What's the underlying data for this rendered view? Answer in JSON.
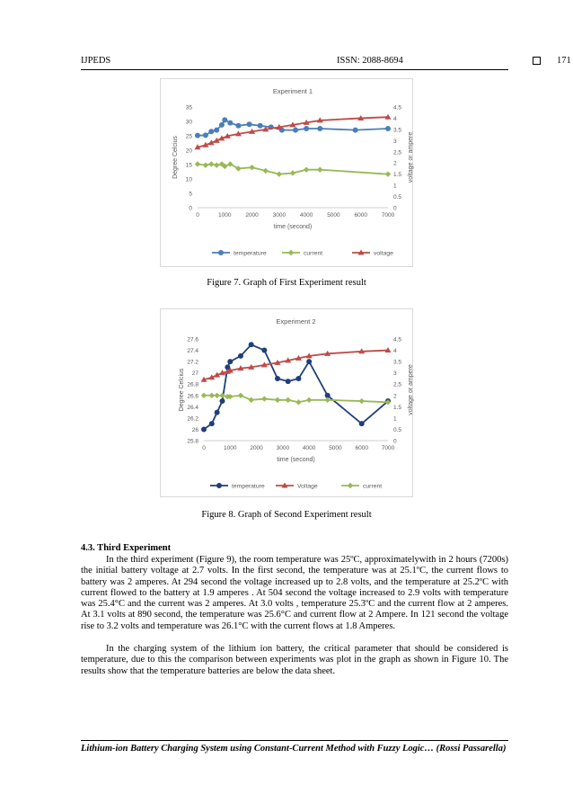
{
  "header": {
    "journal": "IJPEDS",
    "issn": "ISSN: 2088-8694",
    "page_number": "171"
  },
  "figure7": {
    "caption": "Figure 7. Graph of First Experiment result"
  },
  "figure8": {
    "caption": "Figure 8. Graph of Second Experiment result"
  },
  "chart_data": [
    {
      "type": "line",
      "title": "Experiment 1",
      "xlabel": "time (second)",
      "ylabel": "Degree Celcius",
      "y2label": "voltage or ampere",
      "xlim": [
        0,
        7000
      ],
      "xticks": [
        "0",
        "1000",
        "2000",
        "3000",
        "4000",
        "5000",
        "6000",
        "7000"
      ],
      "ylim": [
        0,
        35
      ],
      "yticks": [
        "0",
        "5",
        "10",
        "15",
        "20",
        "25",
        "30",
        "35"
      ],
      "y2lim": [
        0,
        4.5
      ],
      "y2ticks": [
        "0",
        "0.5",
        "1",
        "1.5",
        "2",
        "2.5",
        "3",
        "3.5",
        "4",
        "4.5"
      ],
      "legend_position": "bottom",
      "colors": {
        "temperature": "#4a7ebb",
        "current": "#98b954",
        "voltage": "#be4b48"
      },
      "series": [
        {
          "name": "temperature",
          "axis": "left",
          "x": [
            0,
            294,
            504,
            700,
            890,
            1000,
            1200,
            1500,
            1900,
            2300,
            2700,
            3100,
            3600,
            4000,
            4500,
            5800,
            7000
          ],
          "y": [
            25.1,
            25.2,
            26.5,
            27,
            28.8,
            30.5,
            29.5,
            28.5,
            29,
            28.5,
            28,
            27,
            27,
            27.5,
            27.5,
            27,
            27.5
          ]
        },
        {
          "name": "current",
          "axis": "right",
          "x": [
            0,
            294,
            504,
            700,
            890,
            1000,
            1200,
            1500,
            2000,
            2500,
            3000,
            3500,
            4000,
            4500,
            7000
          ],
          "y": [
            1.95,
            1.9,
            1.95,
            1.9,
            1.95,
            1.85,
            1.95,
            1.75,
            1.8,
            1.65,
            1.5,
            1.55,
            1.7,
            1.7,
            1.5
          ]
        },
        {
          "name": "voltage",
          "axis": "right",
          "x": [
            0,
            294,
            504,
            700,
            890,
            1100,
            1500,
            2000,
            2500,
            3000,
            3500,
            4000,
            4500,
            6000,
            7000
          ],
          "y": [
            2.7,
            2.8,
            2.9,
            3.0,
            3.1,
            3.2,
            3.3,
            3.4,
            3.5,
            3.6,
            3.7,
            3.8,
            3.9,
            4.0,
            4.05
          ]
        }
      ]
    },
    {
      "type": "line",
      "title": "Experiment 2",
      "xlabel": "time (second)",
      "ylabel": "Degree Celcius",
      "y2label": "voltage or ampere",
      "xlim": [
        0,
        7000
      ],
      "xticks": [
        "0",
        "1000",
        "2000",
        "3000",
        "4000",
        "5000",
        "6000",
        "7000"
      ],
      "ylim": [
        25.8,
        27.6
      ],
      "yticks": [
        "25.8",
        "26",
        "26.2",
        "26.4",
        "26.6",
        "26.8",
        "27",
        "27.2",
        "27.4",
        "27.6"
      ],
      "y2lim": [
        0,
        4.5
      ],
      "y2ticks": [
        "0",
        "0.5",
        "1",
        "1.5",
        "2",
        "2.5",
        "3",
        "3.5",
        "4",
        "4.5"
      ],
      "legend_position": "bottom",
      "colors": {
        "temperature": "#1f3f7a",
        "Voltage": "#be4b48",
        "current": "#98b954"
      },
      "series": [
        {
          "name": "temperature",
          "axis": "left",
          "x": [
            0,
            300,
            500,
            700,
            900,
            1000,
            1400,
            1800,
            2300,
            2800,
            3200,
            3600,
            4000,
            4700,
            6000,
            7000
          ],
          "y": [
            26.0,
            26.1,
            26.3,
            26.5,
            27.1,
            27.2,
            27.3,
            27.5,
            27.4,
            26.9,
            26.85,
            26.9,
            27.2,
            26.6,
            26.1,
            26.5
          ]
        },
        {
          "name": "Voltage",
          "axis": "right",
          "x": [
            0,
            300,
            500,
            700,
            900,
            1000,
            1400,
            1800,
            2300,
            2800,
            3200,
            3600,
            4000,
            4700,
            6000,
            7000
          ],
          "y": [
            2.7,
            2.8,
            2.9,
            3.0,
            3.05,
            3.1,
            3.2,
            3.25,
            3.35,
            3.45,
            3.55,
            3.65,
            3.75,
            3.85,
            3.95,
            4.0
          ]
        },
        {
          "name": "current",
          "axis": "right",
          "x": [
            0,
            300,
            500,
            700,
            900,
            1000,
            1400,
            1800,
            2300,
            2800,
            3200,
            3600,
            4000,
            4700,
            6000,
            7000
          ],
          "y": [
            2.0,
            2.0,
            2.0,
            2.0,
            1.95,
            1.95,
            2.0,
            1.8,
            1.85,
            1.8,
            1.8,
            1.7,
            1.8,
            1.8,
            1.75,
            1.7
          ]
        }
      ]
    }
  ],
  "section": {
    "title": "4.3.   Third Experiment",
    "paragraph1": "In the third experiment (Figure 9), the room temperature was 25ºC, approximatelywith in 2 hours (7200s) the initial battery voltage at 2.7 volts. In the first second, the temperature was at 25.1ºC, the current flows to battery was 2 amperes. At  294 second the voltage increased up to 2.8 volts, and the temperature at 25.2ºC with current flowed to the battery at 1.9 amperes . At 504 second the voltage increased to 2.9 volts with temperature was 25.4°C and the current was 2 amperes. At 3.0 volts , temperature 25.3ºC and the current flow at 2 amperes. At 3.1 volts at 890 second, the temperature was 25.6°C and current flow at 2 Ampere. In 121 second the voltage rise to 3.2 volts and temperature was  26.1°C with the current flows at 1.8 Amperes.",
    "paragraph2": "In the charging system of the lithium ion battery, the critical parameter that should be considered is temperature, due to this the comparison between experiments was plot in the graph as shown in Figure 10. The results show that the temperature batteries are below the data sheet."
  },
  "footer": {
    "text": "Lithium-ion Battery Charging System using Constant-Current Method with Fuzzy Logic… (Rossi Passarella)"
  }
}
